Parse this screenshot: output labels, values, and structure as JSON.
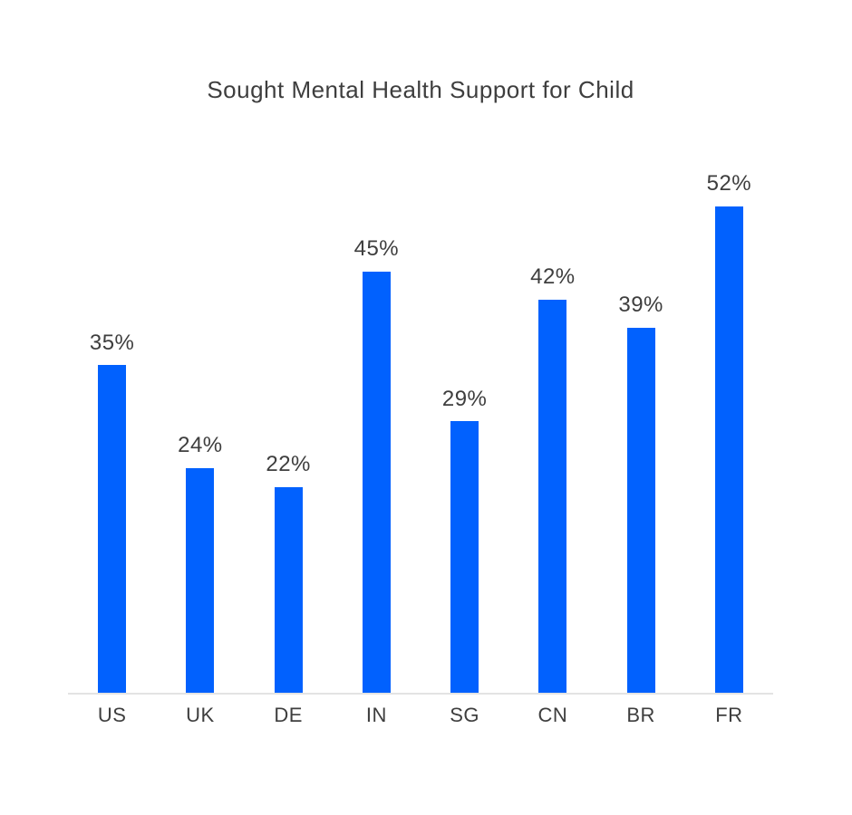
{
  "chart_data": {
    "type": "bar",
    "title": "Sought Mental Health Support for Child",
    "categories": [
      "US",
      "UK",
      "DE",
      "IN",
      "SG",
      "CN",
      "BR",
      "FR"
    ],
    "values": [
      35,
      24,
      22,
      45,
      29,
      42,
      39,
      52
    ],
    "value_labels": [
      "35%",
      "24%",
      "22%",
      "45%",
      "29%",
      "42%",
      "39%",
      "52%"
    ],
    "value_suffix": "%",
    "xlabel": "",
    "ylabel": "",
    "ylim": [
      0,
      60
    ],
    "grid": "off",
    "legend": "none",
    "bar_color": "#0161fe",
    "text_color": "#3e3e3e",
    "axis_line_color": "#e3e3e3",
    "background_color": "#ffffff"
  }
}
